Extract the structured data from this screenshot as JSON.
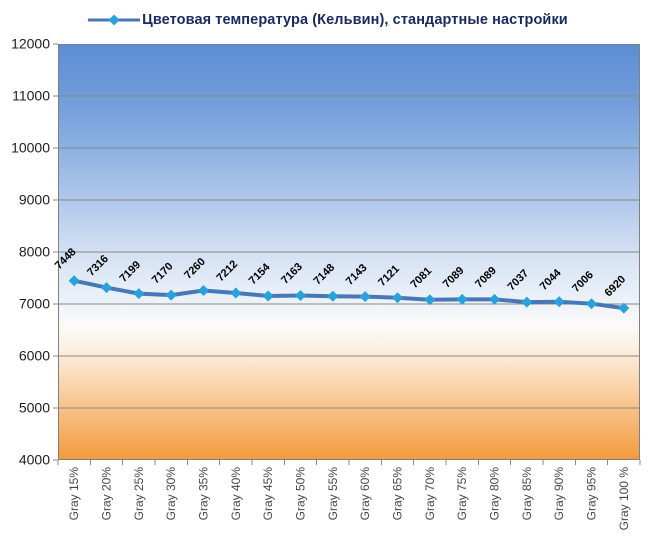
{
  "legend": {
    "label": "Цветовая температура (Кельвин), стандартные настройки"
  },
  "chart_data": {
    "type": "line",
    "title": "",
    "categories": [
      "Gray 15%",
      "Gray 20%",
      "Gray 25%",
      "Gray 30%",
      "Gray 35%",
      "Gray 40%",
      "Gray 45%",
      "Gray 50%",
      "Gray 55%",
      "Gray 60%",
      "Gray 65%",
      "Gray 70%",
      "Gray 75%",
      "Gray 80%",
      "Gray 85%",
      "Gray 90%",
      "Gray 95%",
      "Gray 100 %"
    ],
    "series": [
      {
        "name": "Цветовая температура (Кельвин), стандартные настройки",
        "values": [
          7448,
          7316,
          7199,
          7170,
          7260,
          7212,
          7154,
          7163,
          7148,
          7143,
          7121,
          7081,
          7089,
          7089,
          7037,
          7044,
          7006,
          6920
        ]
      }
    ],
    "xlabel": "",
    "ylabel": "",
    "ylim": [
      4000,
      12000
    ],
    "ytick_step": 1000,
    "grid": true,
    "legend_position": "top",
    "data_labels": true,
    "colors": {
      "line": "#4878b4",
      "marker": "#27a2db",
      "gridline": "#878787",
      "plot_border": "#808080",
      "legend_text": "#182a5e",
      "axis_label": "#1c1c24",
      "category_label": "#46464e",
      "data_label": "#000000",
      "bg_top": "#5b8ed5",
      "bg_middle": "#fbfaf8",
      "bg_bottom": "#f49a3e"
    }
  }
}
